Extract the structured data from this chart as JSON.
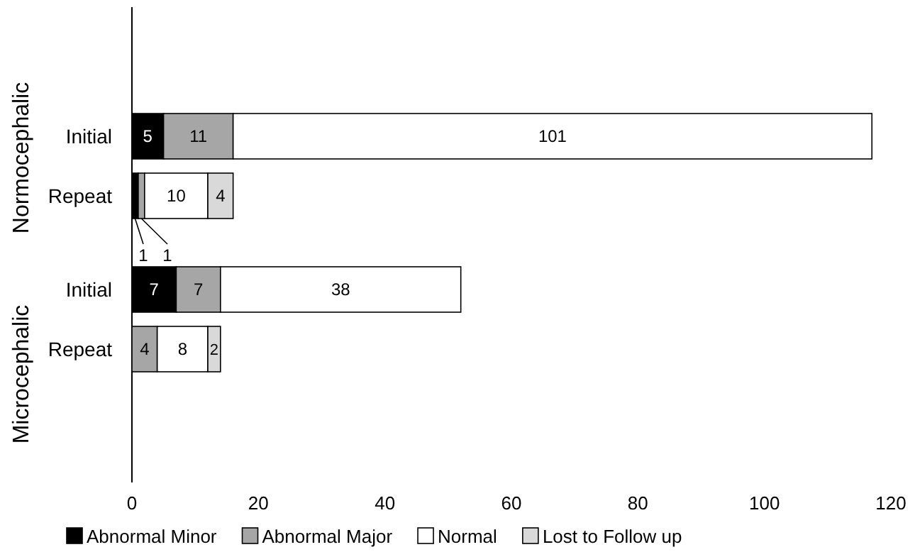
{
  "chart_data": {
    "type": "bar",
    "orientation": "horizontal",
    "stacked": true,
    "categories": [
      "Initial",
      "Repeat",
      "Initial",
      "Repeat"
    ],
    "annotations": [
      "Normocephalic",
      "Microcephalic"
    ],
    "series": [
      {
        "name": "Abnormal Minor",
        "color": "#000000",
        "values": [
          5,
          1,
          7,
          null
        ]
      },
      {
        "name": "Abnormal Major",
        "color": "#a6a6a6",
        "values": [
          11,
          1,
          7,
          4
        ]
      },
      {
        "name": "Normal",
        "color": "#ffffff",
        "values": [
          101,
          10,
          38,
          8
        ]
      },
      {
        "name": "Lost to Follow up",
        "color": "#d9d9d9",
        "values": [
          null,
          4,
          null,
          2
        ]
      }
    ],
    "xlim": [
      0,
      120
    ],
    "xticks": [
      0,
      20,
      40,
      60,
      80,
      100,
      120
    ],
    "grid": false,
    "data_labels": true,
    "legend": "bottom"
  }
}
